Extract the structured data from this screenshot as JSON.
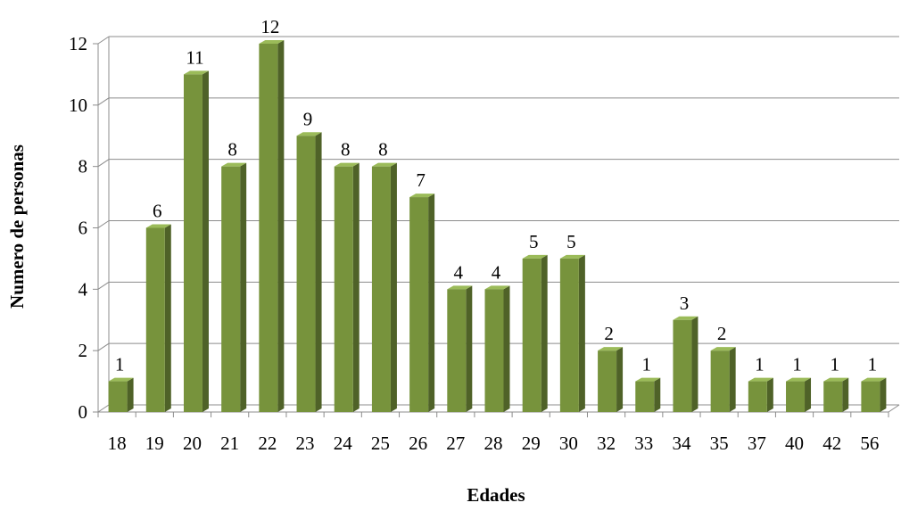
{
  "chart_data": {
    "type": "bar",
    "title": "",
    "xlabel": "Edades",
    "ylabel": "Numero de personas",
    "categories": [
      "18",
      "19",
      "20",
      "21",
      "22",
      "23",
      "24",
      "25",
      "26",
      "27",
      "28",
      "29",
      "30",
      "32",
      "33",
      "34",
      "35",
      "37",
      "40",
      "42",
      "56"
    ],
    "values": [
      1,
      6,
      11,
      8,
      12,
      9,
      8,
      8,
      7,
      4,
      4,
      5,
      5,
      2,
      1,
      3,
      2,
      1,
      1,
      1,
      1
    ],
    "yticks": [
      "0",
      "2",
      "4",
      "6",
      "8",
      "10",
      "12"
    ],
    "ylim": [
      0,
      12
    ],
    "grid": true,
    "legend": "none",
    "three_d": true,
    "colors": {
      "bar_front": "#77933c",
      "bar_side": "#4f6228",
      "bar_top": "#9bbb59",
      "grid": "#8c8c8c"
    }
  }
}
